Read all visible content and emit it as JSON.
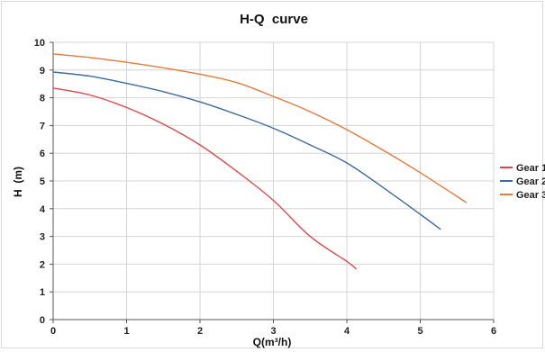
{
  "chart_data": {
    "type": "line",
    "title": "H-Q  curve",
    "xlabel": "Q(m³/h)",
    "ylabel": "H  (m)",
    "xlim": [
      0,
      6
    ],
    "ylim": [
      0,
      10
    ],
    "x_ticks": [
      "0",
      "1",
      "2",
      "3",
      "4",
      "5",
      "6"
    ],
    "y_ticks": [
      "0",
      "1",
      "2",
      "3",
      "4",
      "5",
      "6",
      "7",
      "8",
      "9",
      "10"
    ],
    "grid": true,
    "legend_position": "right",
    "series": [
      {
        "name": "Gear 1",
        "color": "#e0474a",
        "points": [
          [
            0,
            8.35
          ],
          [
            0.5,
            8.1
          ],
          [
            1.0,
            7.65
          ],
          [
            1.5,
            7.05
          ],
          [
            2.0,
            6.3
          ],
          [
            2.5,
            5.35
          ],
          [
            3.0,
            4.3
          ],
          [
            3.5,
            3.0
          ],
          [
            4.0,
            2.1
          ],
          [
            4.13,
            1.82
          ]
        ]
      },
      {
        "name": "Gear 2",
        "color": "#3d6b9a",
        "points": [
          [
            0,
            8.93
          ],
          [
            0.5,
            8.78
          ],
          [
            1.0,
            8.52
          ],
          [
            1.5,
            8.22
          ],
          [
            2.0,
            7.85
          ],
          [
            2.5,
            7.4
          ],
          [
            3.0,
            6.9
          ],
          [
            3.5,
            6.3
          ],
          [
            4.0,
            5.65
          ],
          [
            4.5,
            4.75
          ],
          [
            5.0,
            3.8
          ],
          [
            5.28,
            3.25
          ]
        ]
      },
      {
        "name": "Gear 3",
        "color": "#e8793a",
        "points": [
          [
            0,
            9.58
          ],
          [
            0.5,
            9.45
          ],
          [
            1.0,
            9.28
          ],
          [
            1.5,
            9.08
          ],
          [
            2.0,
            8.85
          ],
          [
            2.5,
            8.55
          ],
          [
            3.0,
            8.05
          ],
          [
            3.5,
            7.5
          ],
          [
            4.0,
            6.85
          ],
          [
            4.5,
            6.1
          ],
          [
            5.0,
            5.3
          ],
          [
            5.63,
            4.22
          ]
        ]
      }
    ]
  }
}
